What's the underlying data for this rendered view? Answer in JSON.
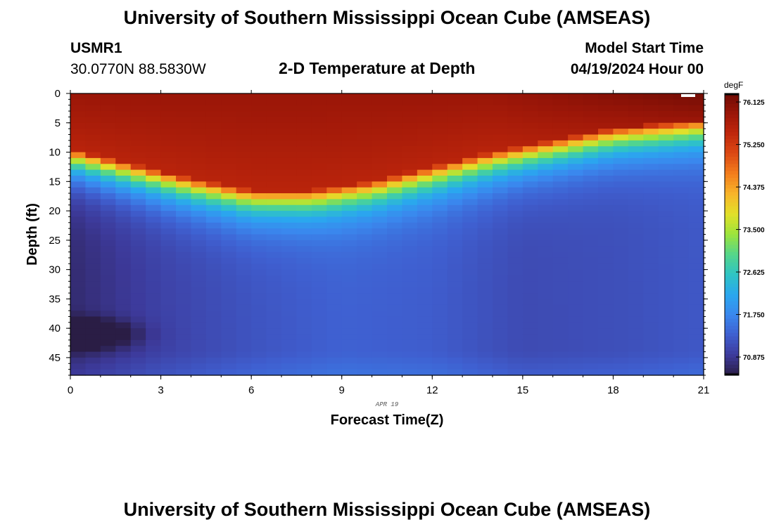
{
  "header": {
    "title": "University of Southern Mississippi Ocean Cube (AMSEAS)",
    "station": "USMR1",
    "coords": "30.0770N  88.5830W",
    "plot_title": "2-D Temperature at Depth",
    "model_start_label": "Model Start Time",
    "model_start_value": "04/19/2024 Hour 00"
  },
  "footer": {
    "title": "University of Southern Mississippi Ocean Cube (AMSEAS)"
  },
  "chart_data": {
    "type": "heatmap",
    "title": "2-D Temperature at Depth",
    "xlabel": "Forecast Time(Z)",
    "ylabel": "Depth (ft)",
    "x_ticks": [
      0,
      3,
      6,
      9,
      12,
      15,
      18,
      21
    ],
    "y_ticks": [
      0,
      5,
      10,
      15,
      20,
      25,
      30,
      35,
      40,
      45
    ],
    "xlim": [
      0,
      21
    ],
    "ylim": [
      0,
      48
    ],
    "date_label": "APR 19",
    "colorbar": {
      "unit": "degF",
      "min": 70.5,
      "max": 76.3,
      "ticks": [
        "76.125",
        "75.250",
        "74.375",
        "73.500",
        "72.625",
        "71.750",
        "70.875"
      ]
    },
    "colormap": [
      "#2a1d45",
      "#3d3a9b",
      "#3f5fd0",
      "#3a88ee",
      "#2aa7ef",
      "#2fc4c4",
      "#55d68a",
      "#9ce43c",
      "#e2e029",
      "#f8b52a",
      "#f37e1d",
      "#dc4a14",
      "#c0270c",
      "#9b1608",
      "#6e0b04"
    ],
    "thermocline_depth_ft": {
      "time_z": [
        0,
        2,
        4,
        6,
        8,
        10,
        12,
        14,
        16,
        18,
        21
      ],
      "depth": [
        9.5,
        12,
        14.5,
        16.5,
        16.5,
        15,
        12.5,
        10,
        8,
        6,
        4.5
      ]
    },
    "bottom_temperature_degF": {
      "time_z": [
        0,
        3,
        6,
        9,
        12,
        15,
        18,
        21
      ],
      "values": [
        70.7,
        71.0,
        71.2,
        71.35,
        71.3,
        71.1,
        71.15,
        71.25
      ]
    }
  }
}
